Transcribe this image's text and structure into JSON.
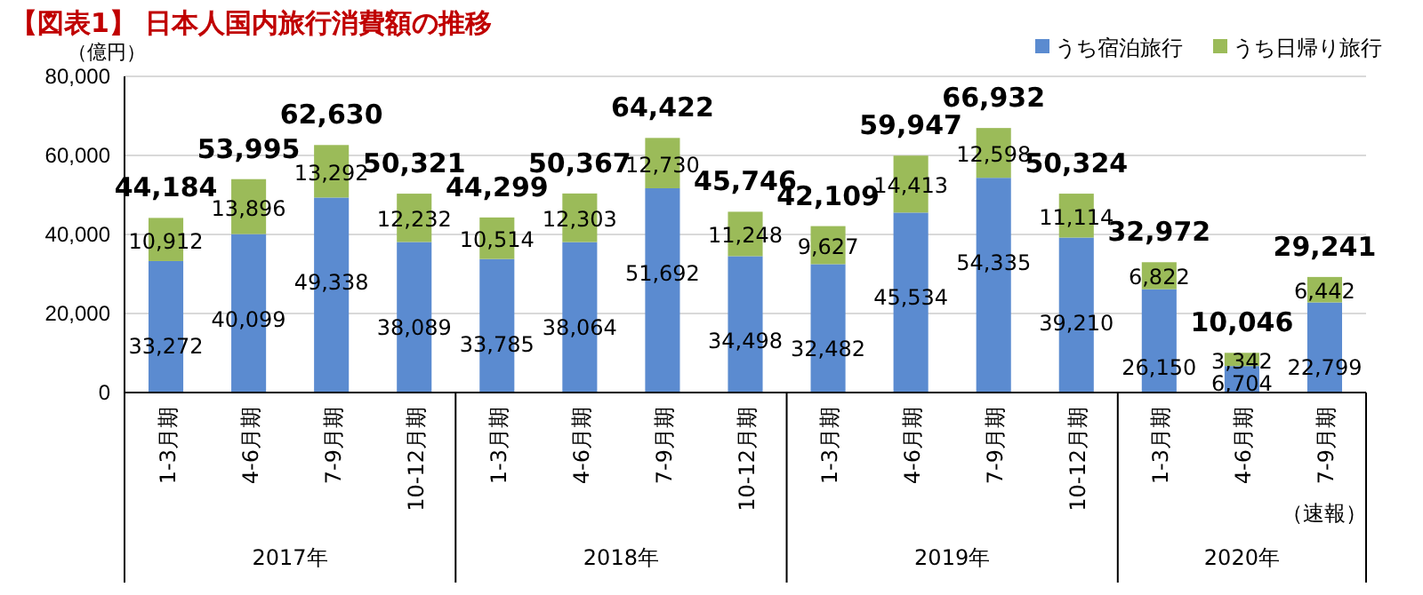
{
  "chart_data": {
    "type": "bar",
    "stacked": true,
    "title": "【図表1】 日本人国内旅行消費額の推移",
    "ylabel": "（億円）",
    "categories": [
      "1-3月期",
      "4-6月期",
      "7-9月期",
      "10-12月期",
      "1-3月期",
      "4-6月期",
      "7-9月期",
      "10-12月期",
      "1-3月期",
      "4-6月期",
      "7-9月期",
      "10-12月期",
      "1-3月期",
      "4-6月期",
      "7-9月期"
    ],
    "series": [
      {
        "name": "うち宿泊旅行",
        "color": "#5b8bd0",
        "values": [
          33272,
          40099,
          49338,
          38089,
          33785,
          38064,
          51692,
          34498,
          32482,
          45534,
          54335,
          39210,
          26150,
          6704,
          22799
        ],
        "value_labels": [
          "33,272",
          "40,099",
          "49,338",
          "38,089",
          "33,785",
          "38,064",
          "51,692",
          "34,498",
          "32,482",
          "45,534",
          "54,335",
          "39,210",
          "26,150",
          "6,704",
          "22,799"
        ]
      },
      {
        "name": "うち日帰り旅行",
        "color": "#9bbb59",
        "values": [
          10912,
          13896,
          13292,
          12232,
          10514,
          12303,
          12730,
          11248,
          9627,
          14413,
          12598,
          11114,
          6822,
          3342,
          6442
        ],
        "value_labels": [
          "10,912",
          "13,896",
          "13,292",
          "12,232",
          "10,514",
          "12,303",
          "12,730",
          "11,248",
          "9,627",
          "14,413",
          "12,598",
          "11,114",
          "6,822",
          "3,342",
          "6,442"
        ]
      }
    ],
    "totals": [
      "44,184",
      "53,995",
      "62,630",
      "50,321",
      "44,299",
      "50,367",
      "64,422",
      "45,746",
      "42,109",
      "59,947",
      "66,932",
      "50,324",
      "32,972",
      "10,046",
      "29,241"
    ],
    "ylim": [
      0,
      80000
    ],
    "yticks": [
      {
        "value": 0,
        "label": "0"
      },
      {
        "value": 20000,
        "label": "20,000"
      },
      {
        "value": 40000,
        "label": "40,000"
      },
      {
        "value": 60000,
        "label": "60,000"
      },
      {
        "value": 80000,
        "label": "80,000"
      }
    ],
    "grid": "y",
    "legend": "top right",
    "annotations": [
      "2017年",
      "2018年",
      "2019年",
      "2020年",
      "（速報）"
    ]
  }
}
